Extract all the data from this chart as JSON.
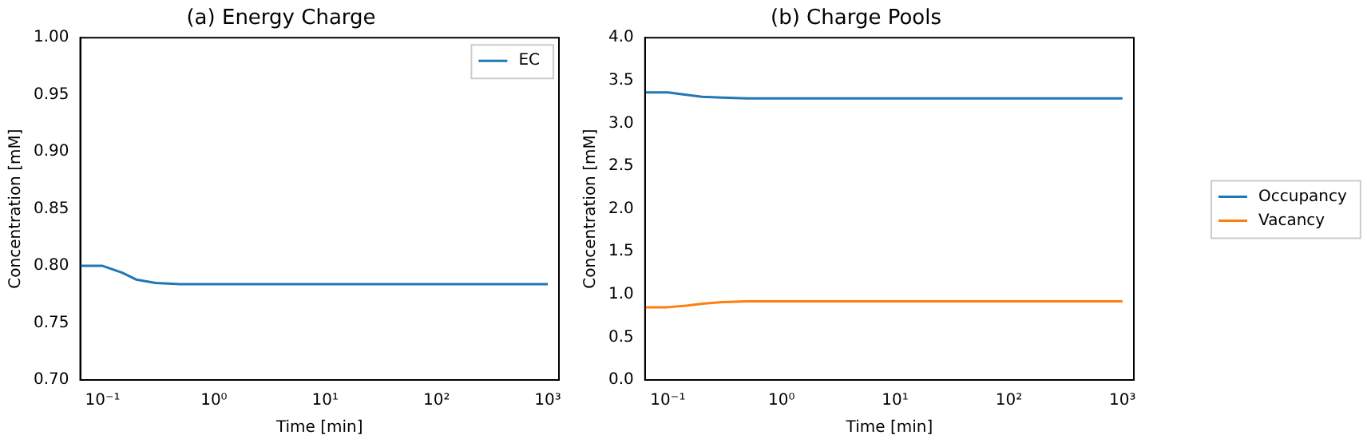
{
  "chart_data": [
    {
      "type": "line",
      "title": "(a) Energy Charge",
      "xlabel": "Time [min]",
      "ylabel": "Concentration [mM]",
      "log": "x",
      "grid": false,
      "legend": "top right",
      "marker": "none",
      "line_style": "solid",
      "x": [
        0.063,
        0.1,
        0.15,
        0.2,
        0.3,
        0.5,
        1,
        1000
      ],
      "series": [
        {
          "name": "EC",
          "color": "#1f77b4",
          "values": [
            0.8,
            0.8,
            0.794,
            0.788,
            0.785,
            0.784,
            0.784,
            0.784
          ]
        }
      ],
      "xlim": [
        0.063,
        1259
      ],
      "xticks": [
        {
          "value": 0.1,
          "label": "10⁻¹"
        },
        {
          "value": 1,
          "label": "10⁰"
        },
        {
          "value": 10,
          "label": "10¹"
        },
        {
          "value": 100,
          "label": "10²"
        },
        {
          "value": 1000,
          "label": "10³"
        }
      ],
      "ylim": [
        0.7,
        1.0
      ],
      "yticks": [
        {
          "value": 0.7,
          "label": "0.70"
        },
        {
          "value": 0.75,
          "label": "0.75"
        },
        {
          "value": 0.8,
          "label": "0.80"
        },
        {
          "value": 0.85,
          "label": "0.85"
        },
        {
          "value": 0.9,
          "label": "0.90"
        },
        {
          "value": 0.95,
          "label": "0.95"
        },
        {
          "value": 1.0,
          "label": "1.00"
        }
      ]
    },
    {
      "type": "line",
      "title": "(b) Charge Pools",
      "xlabel": "Time [min]",
      "ylabel": "Concentration [mM]",
      "log": "x",
      "grid": false,
      "legend": "right",
      "marker": "none",
      "line_style": "solid",
      "x": [
        0.063,
        0.1,
        0.15,
        0.2,
        0.3,
        0.5,
        1,
        1000
      ],
      "series": [
        {
          "name": "Occupancy",
          "color": "#1f77b4",
          "values": [
            3.36,
            3.36,
            3.33,
            3.31,
            3.3,
            3.29,
            3.29,
            3.29
          ]
        },
        {
          "name": "Vacancy",
          "color": "#ff7f0e",
          "values": [
            0.85,
            0.85,
            0.87,
            0.89,
            0.91,
            0.92,
            0.92,
            0.92
          ]
        }
      ],
      "xlim": [
        0.063,
        1259
      ],
      "xticks": [
        {
          "value": 0.1,
          "label": "10⁻¹"
        },
        {
          "value": 1,
          "label": "10⁰"
        },
        {
          "value": 10,
          "label": "10¹"
        },
        {
          "value": 100,
          "label": "10²"
        },
        {
          "value": 1000,
          "label": "10³"
        }
      ],
      "ylim": [
        0,
        4
      ],
      "yticks": [
        {
          "value": 0,
          "label": "0.0"
        },
        {
          "value": 0.5,
          "label": "0.5"
        },
        {
          "value": 1,
          "label": "1.0"
        },
        {
          "value": 1.5,
          "label": "1.5"
        },
        {
          "value": 2,
          "label": "2.0"
        },
        {
          "value": 2.5,
          "label": "2.5"
        },
        {
          "value": 3,
          "label": "3.0"
        },
        {
          "value": 3.5,
          "label": "3.5"
        },
        {
          "value": 4,
          "label": "4.0"
        }
      ]
    }
  ]
}
